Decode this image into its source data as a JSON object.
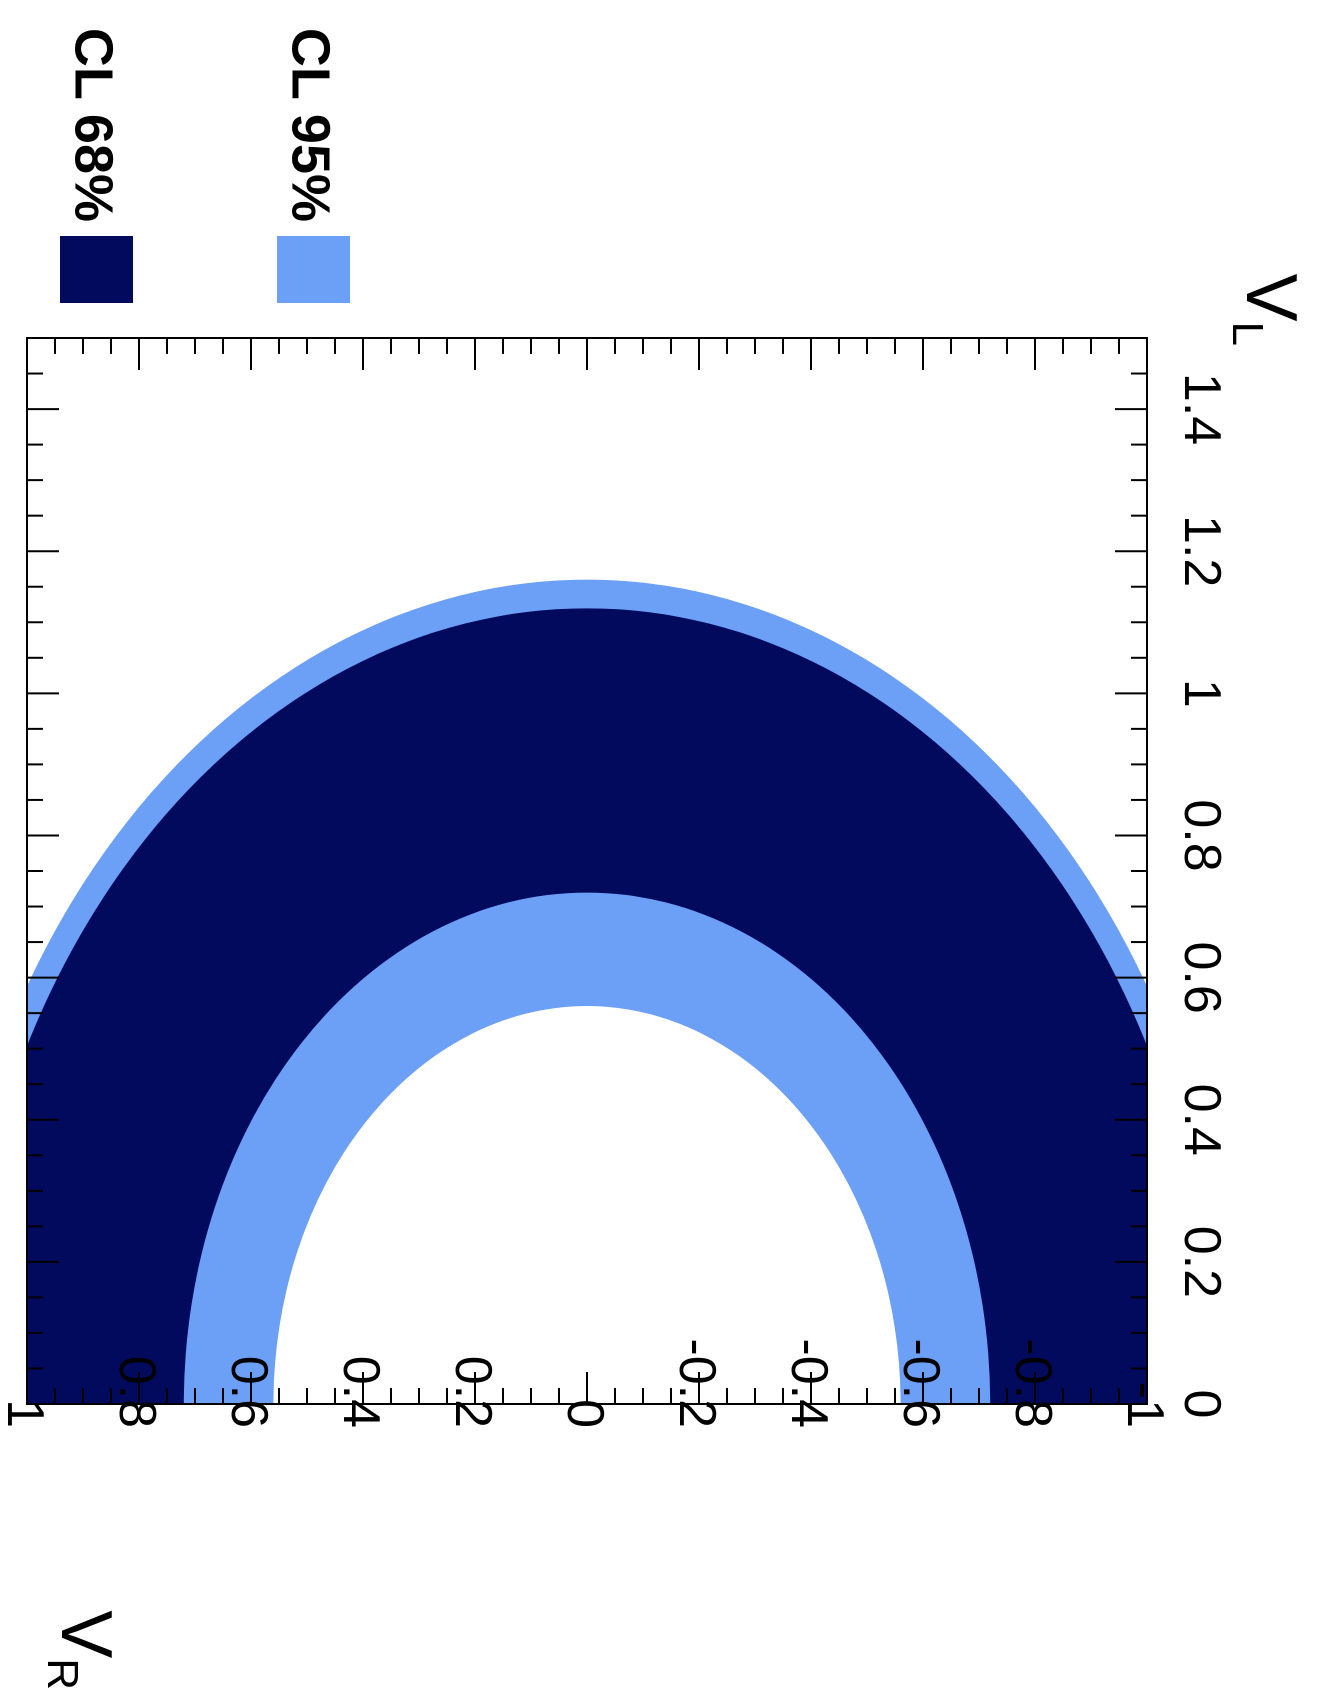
{
  "chart_data": {
    "type": "area",
    "orientation": "rotated 90 degrees clockwise",
    "xlabel_main": "V",
    "xlabel_sub": "L",
    "ylabel_main": "V",
    "ylabel_sub": "R",
    "xlim": [
      0,
      1.5
    ],
    "ylim": [
      -1,
      1
    ],
    "x_ticks": [
      {
        "value": 0,
        "label": "0"
      },
      {
        "value": 0.2,
        "label": "0.2"
      },
      {
        "value": 0.4,
        "label": "0.4"
      },
      {
        "value": 0.6,
        "label": "0.6"
      },
      {
        "value": 0.8,
        "label": "0.8"
      },
      {
        "value": 1.0,
        "label": "1"
      },
      {
        "value": 1.2,
        "label": "1.2"
      },
      {
        "value": 1.4,
        "label": "1.4"
      }
    ],
    "y_ticks": [
      {
        "value": 1,
        "label": "1"
      },
      {
        "value": 0.8,
        "label": "0.8"
      },
      {
        "value": 0.6,
        "label": "0.6"
      },
      {
        "value": 0.4,
        "label": "0.4"
      },
      {
        "value": 0.2,
        "label": "0.2"
      },
      {
        "value": 0,
        "label": "0"
      },
      {
        "value": -0.2,
        "label": "-0.2"
      },
      {
        "value": -0.4,
        "label": "-0.4"
      },
      {
        "value": -0.6,
        "label": "-0.6"
      },
      {
        "value": -0.8,
        "label": "-0.8"
      },
      {
        "value": -1,
        "label": "-1"
      }
    ],
    "legend_position": "top",
    "series": [
      {
        "name": "CL 68%",
        "color": "#020a5e",
        "shape": "annulus",
        "r_inner": 0.72,
        "r_outer": 1.12
      },
      {
        "name": "CL 95%",
        "color": "#6ca0f6",
        "shape": "annulus",
        "r_inner": 0.56,
        "r_outer": 1.16
      }
    ]
  }
}
